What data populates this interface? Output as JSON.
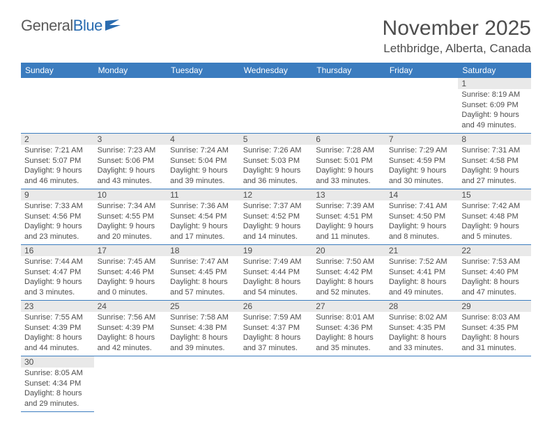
{
  "logo": {
    "text1": "General",
    "text2": "Blue"
  },
  "title": "November 2025",
  "subtitle": "Lethbridge, Alberta, Canada",
  "colors": {
    "header_bg": "#3b7cbf",
    "header_text": "#ffffff",
    "daynum_bg": "#e9e9e9",
    "body_text": "#4d4d4d",
    "row_divider": "#3b7cbf"
  },
  "weekdays": [
    "Sunday",
    "Monday",
    "Tuesday",
    "Wednesday",
    "Thursday",
    "Friday",
    "Saturday"
  ],
  "first_weekday": 6,
  "days": [
    {
      "n": 1,
      "sr": "8:19 AM",
      "ss": "6:09 PM",
      "dl": "9 hours and 49 minutes."
    },
    {
      "n": 2,
      "sr": "7:21 AM",
      "ss": "5:07 PM",
      "dl": "9 hours and 46 minutes."
    },
    {
      "n": 3,
      "sr": "7:23 AM",
      "ss": "5:06 PM",
      "dl": "9 hours and 43 minutes."
    },
    {
      "n": 4,
      "sr": "7:24 AM",
      "ss": "5:04 PM",
      "dl": "9 hours and 39 minutes."
    },
    {
      "n": 5,
      "sr": "7:26 AM",
      "ss": "5:03 PM",
      "dl": "9 hours and 36 minutes."
    },
    {
      "n": 6,
      "sr": "7:28 AM",
      "ss": "5:01 PM",
      "dl": "9 hours and 33 minutes."
    },
    {
      "n": 7,
      "sr": "7:29 AM",
      "ss": "4:59 PM",
      "dl": "9 hours and 30 minutes."
    },
    {
      "n": 8,
      "sr": "7:31 AM",
      "ss": "4:58 PM",
      "dl": "9 hours and 27 minutes."
    },
    {
      "n": 9,
      "sr": "7:33 AM",
      "ss": "4:56 PM",
      "dl": "9 hours and 23 minutes."
    },
    {
      "n": 10,
      "sr": "7:34 AM",
      "ss": "4:55 PM",
      "dl": "9 hours and 20 minutes."
    },
    {
      "n": 11,
      "sr": "7:36 AM",
      "ss": "4:54 PM",
      "dl": "9 hours and 17 minutes."
    },
    {
      "n": 12,
      "sr": "7:37 AM",
      "ss": "4:52 PM",
      "dl": "9 hours and 14 minutes."
    },
    {
      "n": 13,
      "sr": "7:39 AM",
      "ss": "4:51 PM",
      "dl": "9 hours and 11 minutes."
    },
    {
      "n": 14,
      "sr": "7:41 AM",
      "ss": "4:50 PM",
      "dl": "9 hours and 8 minutes."
    },
    {
      "n": 15,
      "sr": "7:42 AM",
      "ss": "4:48 PM",
      "dl": "9 hours and 5 minutes."
    },
    {
      "n": 16,
      "sr": "7:44 AM",
      "ss": "4:47 PM",
      "dl": "9 hours and 3 minutes."
    },
    {
      "n": 17,
      "sr": "7:45 AM",
      "ss": "4:46 PM",
      "dl": "9 hours and 0 minutes."
    },
    {
      "n": 18,
      "sr": "7:47 AM",
      "ss": "4:45 PM",
      "dl": "8 hours and 57 minutes."
    },
    {
      "n": 19,
      "sr": "7:49 AM",
      "ss": "4:44 PM",
      "dl": "8 hours and 54 minutes."
    },
    {
      "n": 20,
      "sr": "7:50 AM",
      "ss": "4:42 PM",
      "dl": "8 hours and 52 minutes."
    },
    {
      "n": 21,
      "sr": "7:52 AM",
      "ss": "4:41 PM",
      "dl": "8 hours and 49 minutes."
    },
    {
      "n": 22,
      "sr": "7:53 AM",
      "ss": "4:40 PM",
      "dl": "8 hours and 47 minutes."
    },
    {
      "n": 23,
      "sr": "7:55 AM",
      "ss": "4:39 PM",
      "dl": "8 hours and 44 minutes."
    },
    {
      "n": 24,
      "sr": "7:56 AM",
      "ss": "4:39 PM",
      "dl": "8 hours and 42 minutes."
    },
    {
      "n": 25,
      "sr": "7:58 AM",
      "ss": "4:38 PM",
      "dl": "8 hours and 39 minutes."
    },
    {
      "n": 26,
      "sr": "7:59 AM",
      "ss": "4:37 PM",
      "dl": "8 hours and 37 minutes."
    },
    {
      "n": 27,
      "sr": "8:01 AM",
      "ss": "4:36 PM",
      "dl": "8 hours and 35 minutes."
    },
    {
      "n": 28,
      "sr": "8:02 AM",
      "ss": "4:35 PM",
      "dl": "8 hours and 33 minutes."
    },
    {
      "n": 29,
      "sr": "8:03 AM",
      "ss": "4:35 PM",
      "dl": "8 hours and 31 minutes."
    },
    {
      "n": 30,
      "sr": "8:05 AM",
      "ss": "4:34 PM",
      "dl": "8 hours and 29 minutes."
    }
  ],
  "labels": {
    "sunrise": "Sunrise:",
    "sunset": "Sunset:",
    "daylight": "Daylight:"
  }
}
